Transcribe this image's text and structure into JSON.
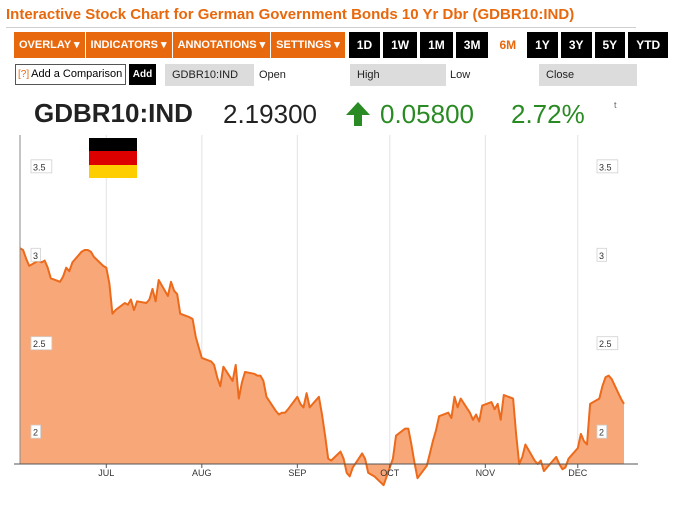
{
  "page": {
    "title": "Interactive Stock Chart for German Government Bonds 10 Yr Dbr (GDBR10:IND)"
  },
  "toolbar": {
    "menus": [
      "OVERLAY ▾",
      "INDICATORS ▾",
      "ANNOTATIONS ▾",
      "SETTINGS ▾"
    ],
    "ranges": [
      "1D",
      "1W",
      "1M",
      "3M",
      "6M",
      "1Y",
      "3Y",
      "5Y",
      "YTD"
    ],
    "active_range": "6M"
  },
  "compare": {
    "help": "[?]",
    "placeholder": "Add a Comparison",
    "add_label": "Add"
  },
  "quote_bar": {
    "ticker": "GDBR10:IND",
    "open_label": "Open",
    "high_label": "High",
    "low_label": "Low",
    "close_label": "Close"
  },
  "quote": {
    "symbol": "GDBR10:IND",
    "price": "2.19300",
    "change": "0.05800",
    "percent": "2.72%",
    "corner": "t",
    "direction": "up"
  },
  "colors": {
    "accent": "#e8680d",
    "positive": "#2a8a23",
    "area_fill": "#f8a878",
    "line": "#ec6a1c",
    "flag": [
      "#000000",
      "#dd0000",
      "#ffce00"
    ]
  },
  "chart_data": {
    "type": "area",
    "title": "",
    "xlabel": "",
    "ylabel": "",
    "ylim": [
      1.82,
      3.68
    ],
    "yticks": [
      "3.5",
      "3",
      "2.5",
      "2"
    ],
    "yticks_values": [
      3.5,
      3.0,
      2.5,
      2.0
    ],
    "xticks": [
      "JUL",
      "AUG",
      "SEP",
      "OCT",
      "NOV",
      "DEC"
    ],
    "xticks_dates": [
      "2014-07-01",
      "2014-08-01",
      "2014-09-01",
      "2014-10-01",
      "2014-11-01",
      "2014-12-01"
    ],
    "grid": "vertical",
    "series": [
      {
        "values": [
          [
            "2014-06-03",
            3.04
          ],
          [
            "2014-06-04",
            3.03
          ],
          [
            "2014-06-05",
            2.98
          ],
          [
            "2014-06-06",
            2.94
          ],
          [
            "2014-06-09",
            2.97
          ],
          [
            "2014-06-10",
            2.96
          ],
          [
            "2014-06-11",
            2.97
          ],
          [
            "2014-06-12",
            2.93
          ],
          [
            "2014-06-13",
            2.87
          ],
          [
            "2014-06-16",
            2.85
          ],
          [
            "2014-06-17",
            2.88
          ],
          [
            "2014-06-18",
            2.93
          ],
          [
            "2014-06-19",
            2.91
          ],
          [
            "2014-06-20",
            2.96
          ],
          [
            "2014-06-23",
            3.02
          ],
          [
            "2014-06-24",
            3.03
          ],
          [
            "2014-06-25",
            3.03
          ],
          [
            "2014-06-26",
            3.02
          ],
          [
            "2014-06-27",
            2.99
          ],
          [
            "2014-06-30",
            2.94
          ],
          [
            "2014-07-01",
            2.93
          ],
          [
            "2014-07-02",
            2.84
          ],
          [
            "2014-07-03",
            2.67
          ],
          [
            "2014-07-04",
            2.69
          ],
          [
            "2014-07-07",
            2.73
          ],
          [
            "2014-07-08",
            2.72
          ],
          [
            "2014-07-09",
            2.75
          ],
          [
            "2014-07-10",
            2.69
          ],
          [
            "2014-07-11",
            2.74
          ],
          [
            "2014-07-14",
            2.73
          ],
          [
            "2014-07-15",
            2.75
          ],
          [
            "2014-07-16",
            2.81
          ],
          [
            "2014-07-17",
            2.74
          ],
          [
            "2014-07-18",
            2.86
          ],
          [
            "2014-07-21",
            2.77
          ],
          [
            "2014-07-22",
            2.85
          ],
          [
            "2014-07-23",
            2.8
          ],
          [
            "2014-07-24",
            2.78
          ],
          [
            "2014-07-25",
            2.67
          ],
          [
            "2014-07-28",
            2.65
          ],
          [
            "2014-07-29",
            2.64
          ],
          [
            "2014-07-30",
            2.54
          ],
          [
            "2014-07-31",
            2.48
          ],
          [
            "2014-08-01",
            2.42
          ],
          [
            "2014-08-04",
            2.4
          ],
          [
            "2014-08-05",
            2.38
          ],
          [
            "2014-08-06",
            2.31
          ],
          [
            "2014-08-07",
            2.26
          ],
          [
            "2014-08-08",
            2.37
          ],
          [
            "2014-08-11",
            2.29
          ],
          [
            "2014-08-12",
            2.38
          ],
          [
            "2014-08-13",
            2.19
          ],
          [
            "2014-08-14",
            2.28
          ],
          [
            "2014-08-15",
            2.34
          ],
          [
            "2014-08-18",
            2.33
          ],
          [
            "2014-08-19",
            2.32
          ],
          [
            "2014-08-20",
            2.32
          ],
          [
            "2014-08-21",
            2.29
          ],
          [
            "2014-08-22",
            2.2
          ],
          [
            "2014-08-25",
            2.12
          ],
          [
            "2014-08-26",
            2.1
          ],
          [
            "2014-08-27",
            2.11
          ],
          [
            "2014-08-28",
            2.11
          ],
          [
            "2014-08-29",
            2.13
          ],
          [
            "2014-09-01",
            2.2
          ],
          [
            "2014-09-02",
            2.16
          ],
          [
            "2014-09-03",
            2.14
          ],
          [
            "2014-09-04",
            2.22
          ],
          [
            "2014-09-05",
            2.14
          ],
          [
            "2014-09-08",
            2.2
          ],
          [
            "2014-09-09",
            2.1
          ],
          [
            "2014-09-10",
            1.98
          ],
          [
            "2014-09-11",
            1.85
          ],
          [
            "2014-09-12",
            1.84
          ],
          [
            "2014-09-15",
            1.89
          ],
          [
            "2014-09-16",
            1.85
          ],
          [
            "2014-09-17",
            1.77
          ],
          [
            "2014-09-18",
            1.75
          ],
          [
            "2014-09-19",
            1.8
          ],
          [
            "2014-09-22",
            1.88
          ],
          [
            "2014-09-23",
            1.85
          ],
          [
            "2014-09-24",
            1.77
          ],
          [
            "2014-09-25",
            1.76
          ],
          [
            "2014-09-26",
            1.75
          ],
          [
            "2014-09-29",
            1.7
          ],
          [
            "2014-09-30",
            1.75
          ],
          [
            "2014-10-01",
            1.8
          ],
          [
            "2014-10-02",
            1.85
          ],
          [
            "2014-10-03",
            1.98
          ],
          [
            "2014-10-06",
            2.02
          ],
          [
            "2014-10-07",
            2.02
          ],
          [
            "2014-10-08",
            1.93
          ],
          [
            "2014-10-09",
            1.83
          ],
          [
            "2014-10-10",
            1.74
          ],
          [
            "2014-10-13",
            1.81
          ],
          [
            "2014-10-14",
            1.88
          ],
          [
            "2014-10-15",
            1.95
          ],
          [
            "2014-10-16",
            2.01
          ],
          [
            "2014-10-17",
            2.09
          ],
          [
            "2014-10-20",
            2.11
          ],
          [
            "2014-10-21",
            2.08
          ],
          [
            "2014-10-22",
            2.2
          ],
          [
            "2014-10-23",
            2.14
          ],
          [
            "2014-10-24",
            2.19
          ],
          [
            "2014-10-27",
            2.11
          ],
          [
            "2014-10-28",
            2.07
          ],
          [
            "2014-10-29",
            2.1
          ],
          [
            "2014-10-30",
            2.06
          ],
          [
            "2014-10-31",
            2.15
          ],
          [
            "2014-11-03",
            2.17
          ],
          [
            "2014-11-04",
            2.13
          ],
          [
            "2014-11-05",
            2.16
          ],
          [
            "2014-11-06",
            2.07
          ],
          [
            "2014-11-07",
            2.21
          ],
          [
            "2014-11-10",
            2.19
          ],
          [
            "2014-11-11",
            1.99
          ],
          [
            "2014-11-12",
            1.82
          ],
          [
            "2014-11-13",
            1.86
          ],
          [
            "2014-11-14",
            1.93
          ],
          [
            "2014-11-17",
            1.84
          ],
          [
            "2014-11-18",
            1.82
          ],
          [
            "2014-11-19",
            1.84
          ],
          [
            "2014-11-20",
            1.78
          ],
          [
            "2014-11-21",
            1.8
          ],
          [
            "2014-11-24",
            1.86
          ],
          [
            "2014-11-25",
            1.82
          ],
          [
            "2014-11-26",
            1.79
          ],
          [
            "2014-11-27",
            1.8
          ],
          [
            "2014-11-28",
            1.85
          ],
          [
            "2014-12-01",
            1.91
          ],
          [
            "2014-12-02",
            1.99
          ],
          [
            "2014-12-03",
            1.95
          ],
          [
            "2014-12-04",
            1.93
          ],
          [
            "2014-12-05",
            2.16
          ],
          [
            "2014-12-08",
            2.19
          ],
          [
            "2014-12-09",
            2.26
          ],
          [
            "2014-12-10",
            2.31
          ],
          [
            "2014-12-11",
            2.32
          ],
          [
            "2014-12-12",
            2.3
          ],
          [
            "2014-12-15",
            2.19
          ],
          [
            "2014-12-16",
            2.16
          ]
        ]
      }
    ]
  }
}
